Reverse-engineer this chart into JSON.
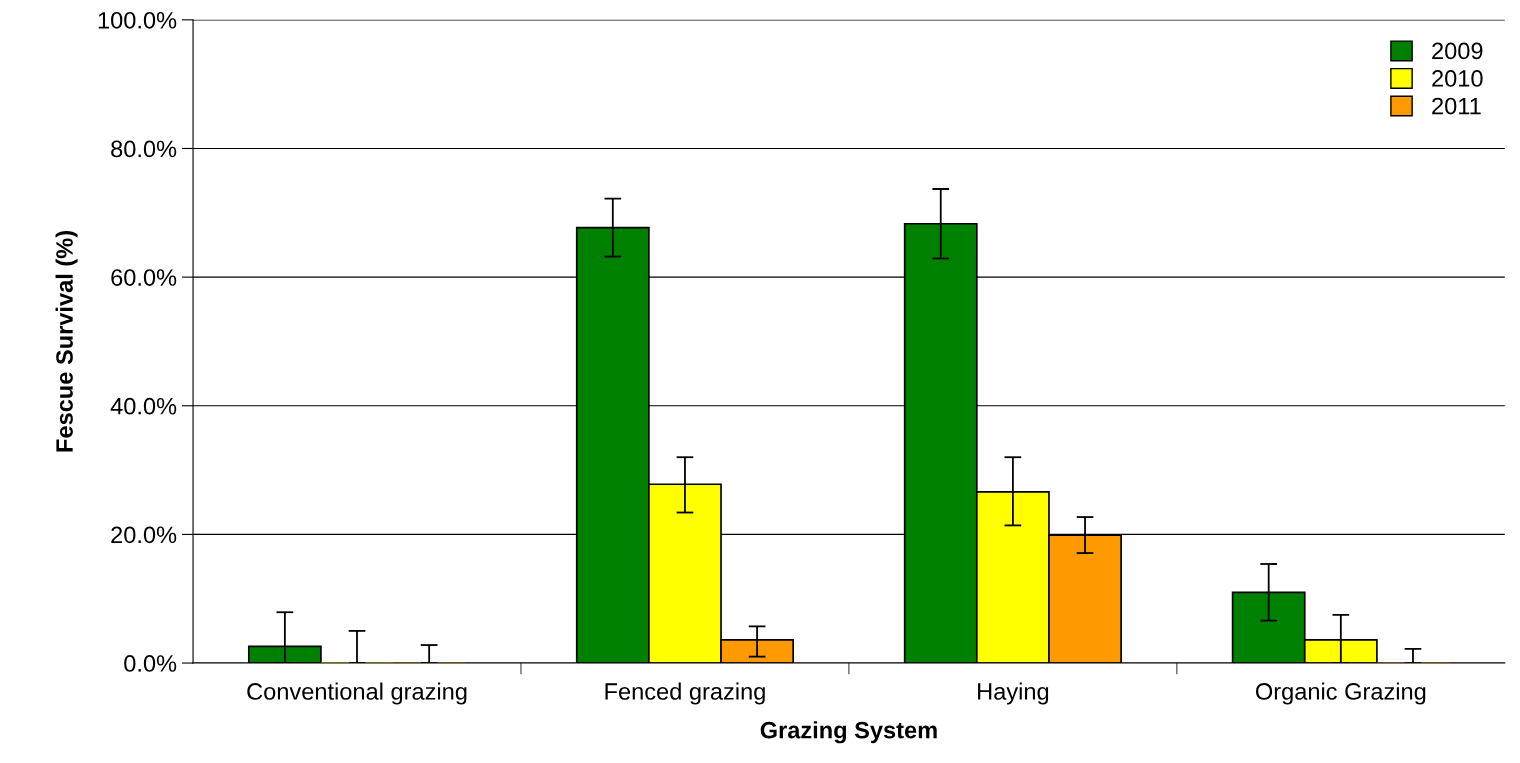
{
  "chart_data": {
    "type": "bar",
    "xlabel": "Grazing System",
    "ylabel": "Fescue Survival (%)",
    "categories": [
      "Conventional grazing",
      "Fenced grazing",
      "Haying",
      "Organic Grazing"
    ],
    "series": [
      {
        "name": "2009",
        "color": "#008000",
        "values": [
          2.6,
          67.7,
          68.3,
          11.0
        ],
        "errors": [
          [
            0,
            7.9
          ],
          [
            63.2,
            72.2
          ],
          [
            62.9,
            73.7
          ],
          [
            6.6,
            15.4
          ]
        ]
      },
      {
        "name": "2010",
        "color": "#ffff00",
        "values": [
          0,
          27.8,
          26.6,
          3.6
        ],
        "errors": [
          [
            0,
            5.0
          ],
          [
            23.4,
            32.0
          ],
          [
            21.4,
            32.0
          ],
          [
            0,
            7.5
          ]
        ]
      },
      {
        "name": "2011",
        "color": "#ff9900",
        "values": [
          0,
          3.6,
          19.9,
          0
        ],
        "errors": [
          [
            0,
            2.8
          ],
          [
            1.0,
            5.7
          ],
          [
            17.1,
            22.7
          ],
          [
            0,
            2.2
          ]
        ]
      }
    ],
    "ylim": [
      0,
      100
    ],
    "yticks": [
      {
        "value": 0,
        "label": "0.0%"
      },
      {
        "value": 20,
        "label": "20.0%"
      },
      {
        "value": 40,
        "label": "40.0%"
      },
      {
        "value": 60,
        "label": "60.0%"
      },
      {
        "value": 80,
        "label": "80.0%"
      },
      {
        "value": 100,
        "label": "100.0%"
      }
    ],
    "grid": "y",
    "legend": "top right"
  }
}
